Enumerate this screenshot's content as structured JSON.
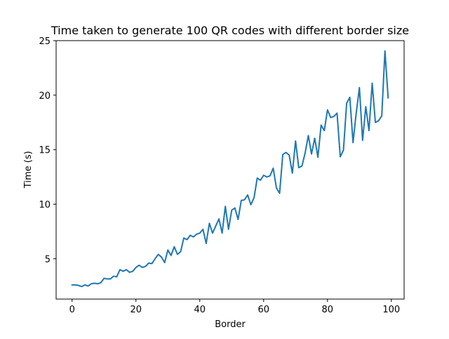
{
  "chart_data": {
    "type": "line",
    "title": "Time taken to generate 100 QR codes with different border size",
    "xlabel": "Border",
    "ylabel": "Time (s)",
    "xlim": [
      -5,
      104
    ],
    "ylim": [
      1.3,
      25
    ],
    "x_ticks": [
      0,
      20,
      40,
      60,
      80,
      100
    ],
    "y_ticks": [
      5,
      10,
      15,
      20,
      25
    ],
    "grid": false,
    "legend": "none",
    "series": [
      {
        "color": "#1f77b4",
        "x": [
          0,
          1,
          2,
          3,
          4,
          5,
          6,
          7,
          8,
          9,
          10,
          11,
          12,
          13,
          14,
          15,
          16,
          17,
          18,
          19,
          20,
          21,
          22,
          23,
          24,
          25,
          26,
          27,
          28,
          29,
          30,
          31,
          32,
          33,
          34,
          35,
          36,
          37,
          38,
          39,
          40,
          41,
          42,
          43,
          44,
          45,
          46,
          47,
          48,
          49,
          50,
          51,
          52,
          53,
          54,
          55,
          56,
          57,
          58,
          59,
          60,
          61,
          62,
          63,
          64,
          65,
          66,
          67,
          68,
          69,
          70,
          71,
          72,
          73,
          74,
          75,
          76,
          77,
          78,
          79,
          80,
          81,
          82,
          83,
          84,
          85,
          86,
          87,
          88,
          89,
          90,
          91,
          92,
          93,
          94,
          95,
          96,
          97,
          98,
          99
        ],
        "y": [
          2.6,
          2.6,
          2.55,
          2.45,
          2.6,
          2.5,
          2.7,
          2.75,
          2.7,
          2.8,
          3.2,
          3.15,
          3.15,
          3.4,
          3.35,
          4.0,
          3.85,
          4.0,
          3.75,
          3.85,
          4.2,
          4.4,
          4.2,
          4.3,
          4.6,
          4.55,
          5.0,
          5.4,
          5.15,
          4.65,
          5.8,
          5.3,
          6.1,
          5.4,
          5.65,
          6.9,
          6.75,
          7.15,
          7.0,
          7.25,
          7.35,
          7.7,
          6.4,
          8.25,
          7.35,
          8.0,
          8.65,
          7.35,
          9.8,
          7.7,
          9.45,
          9.65,
          8.6,
          10.35,
          10.4,
          10.85,
          9.95,
          10.6,
          12.4,
          12.2,
          12.65,
          12.5,
          12.6,
          13.3,
          11.5,
          11.0,
          14.55,
          14.75,
          14.5,
          12.85,
          15.8,
          13.35,
          13.5,
          14.7,
          16.3,
          14.6,
          16.05,
          14.3,
          17.25,
          16.75,
          18.65,
          17.95,
          18.05,
          18.35,
          14.35,
          14.95,
          19.25,
          19.8,
          15.65,
          18.35,
          20.7,
          15.85,
          18.95,
          16.75,
          21.1,
          17.5,
          17.65,
          18.1,
          24.05,
          19.75
        ]
      }
    ]
  }
}
